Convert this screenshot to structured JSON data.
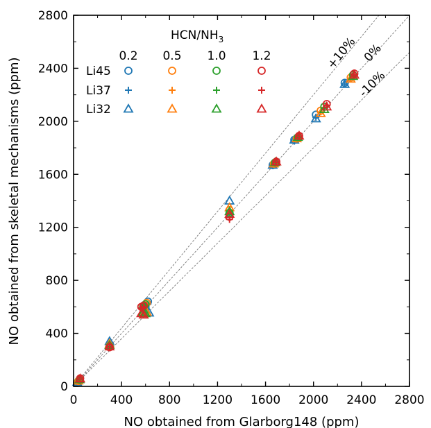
{
  "chart_data": {
    "type": "scatter",
    "xlabel": "NO obtained from Glarborg148 (ppm)",
    "ylabel": "NO obtained from skeletal mechanisms (ppm)",
    "xlim": [
      0,
      2800
    ],
    "ylim": [
      0,
      2800
    ],
    "xticks": [
      "0",
      "400",
      "800",
      "1200",
      "1600",
      "2000",
      "2400",
      "2800"
    ],
    "yticks": [
      "0",
      "400",
      "800",
      "1200",
      "1600",
      "2000",
      "2400",
      "2800"
    ],
    "grid": false,
    "legend": {
      "placement": "top-left",
      "title_main": "HCN/NH",
      "title_sub": "3",
      "ratios": [
        "0.2",
        "0.5",
        "1.0",
        "1.2"
      ],
      "mechanisms": [
        "Li45",
        "Li37",
        "Li32"
      ]
    },
    "reference_lines": [
      {
        "label": "+10%",
        "slope": 1.1
      },
      {
        "label": "0%",
        "slope": 1.0
      },
      {
        "label": "-10%",
        "slope": 0.9
      }
    ],
    "colors": {
      "0.2": "#1f77b4",
      "0.5": "#ff7f0e",
      "1.0": "#2ca02c",
      "1.2": "#d62728"
    },
    "markers": {
      "Li45": "circle",
      "Li37": "plus",
      "Li32": "triangle"
    },
    "series": [
      {
        "mechanism": "Li45",
        "ratio": "0.2",
        "points": [
          [
            30,
            28
          ],
          [
            300,
            310
          ],
          [
            600,
            600
          ],
          [
            620,
            640
          ],
          [
            1300,
            1300
          ],
          [
            1660,
            1670
          ],
          [
            1840,
            1860
          ],
          [
            2020,
            2050
          ],
          [
            2260,
            2290
          ]
        ]
      },
      {
        "mechanism": "Li37",
        "ratio": "0.2",
        "points": [
          [
            30,
            30
          ],
          [
            300,
            305
          ],
          [
            600,
            590
          ],
          [
            620,
            620
          ],
          [
            1300,
            1320
          ],
          [
            1660,
            1665
          ],
          [
            1840,
            1850
          ],
          [
            2020,
            2030
          ],
          [
            2260,
            2280
          ]
        ]
      },
      {
        "mechanism": "Li32",
        "ratio": "0.2",
        "points": [
          [
            30,
            32
          ],
          [
            300,
            340
          ],
          [
            600,
            580
          ],
          [
            630,
            555
          ],
          [
            1300,
            1400
          ],
          [
            1660,
            1670
          ],
          [
            1840,
            1860
          ],
          [
            2020,
            2020
          ],
          [
            2260,
            2280
          ]
        ]
      },
      {
        "mechanism": "Li45",
        "ratio": "0.5",
        "points": [
          [
            40,
            40
          ],
          [
            300,
            305
          ],
          [
            590,
            610
          ],
          [
            610,
            630
          ],
          [
            1300,
            1330
          ],
          [
            1670,
            1680
          ],
          [
            1860,
            1870
          ],
          [
            2060,
            2080
          ],
          [
            2310,
            2330
          ]
        ]
      },
      {
        "mechanism": "Li37",
        "ratio": "0.5",
        "points": [
          [
            40,
            40
          ],
          [
            300,
            300
          ],
          [
            590,
            600
          ],
          [
            610,
            615
          ],
          [
            1300,
            1320
          ],
          [
            1670,
            1680
          ],
          [
            1860,
            1870
          ],
          [
            2060,
            2070
          ],
          [
            2310,
            2320
          ]
        ]
      },
      {
        "mechanism": "Li32",
        "ratio": "0.5",
        "points": [
          [
            40,
            42
          ],
          [
            300,
            320
          ],
          [
            590,
            570
          ],
          [
            610,
            560
          ],
          [
            1300,
            1350
          ],
          [
            1670,
            1680
          ],
          [
            1860,
            1870
          ],
          [
            2060,
            2060
          ],
          [
            2310,
            2320
          ]
        ]
      },
      {
        "mechanism": "Li45",
        "ratio": "1.0",
        "points": [
          [
            50,
            50
          ],
          [
            300,
            300
          ],
          [
            580,
            600
          ],
          [
            600,
            620
          ],
          [
            1300,
            1310
          ],
          [
            1680,
            1690
          ],
          [
            1870,
            1880
          ],
          [
            2090,
            2110
          ],
          [
            2330,
            2350
          ]
        ]
      },
      {
        "mechanism": "Li37",
        "ratio": "1.0",
        "points": [
          [
            50,
            50
          ],
          [
            300,
            298
          ],
          [
            580,
            595
          ],
          [
            600,
            610
          ],
          [
            1300,
            1300
          ],
          [
            1680,
            1690
          ],
          [
            1870,
            1880
          ],
          [
            2090,
            2100
          ],
          [
            2330,
            2340
          ]
        ]
      },
      {
        "mechanism": "Li32",
        "ratio": "1.0",
        "points": [
          [
            50,
            52
          ],
          [
            300,
            310
          ],
          [
            580,
            560
          ],
          [
            600,
            550
          ],
          [
            1300,
            1320
          ],
          [
            1680,
            1690
          ],
          [
            1870,
            1880
          ],
          [
            2090,
            2090
          ],
          [
            2330,
            2340
          ]
        ]
      },
      {
        "mechanism": "Li45",
        "ratio": "1.2",
        "points": [
          [
            55,
            60
          ],
          [
            300,
            295
          ],
          [
            565,
            600
          ],
          [
            585,
            610
          ],
          [
            1300,
            1280
          ],
          [
            1690,
            1695
          ],
          [
            1880,
            1890
          ],
          [
            2110,
            2130
          ],
          [
            2340,
            2360
          ]
        ]
      },
      {
        "mechanism": "Li37",
        "ratio": "1.2",
        "points": [
          [
            55,
            55
          ],
          [
            300,
            292
          ],
          [
            565,
            590
          ],
          [
            585,
            600
          ],
          [
            1300,
            1260
          ],
          [
            1690,
            1690
          ],
          [
            1880,
            1885
          ],
          [
            2110,
            2120
          ],
          [
            2340,
            2350
          ]
        ]
      },
      {
        "mechanism": "Li32",
        "ratio": "1.2",
        "points": [
          [
            55,
            58
          ],
          [
            300,
            300
          ],
          [
            565,
            550
          ],
          [
            585,
            540
          ],
          [
            1300,
            1300
          ],
          [
            1690,
            1695
          ],
          [
            1880,
            1890
          ],
          [
            2110,
            2110
          ],
          [
            2340,
            2350
          ]
        ]
      }
    ]
  }
}
